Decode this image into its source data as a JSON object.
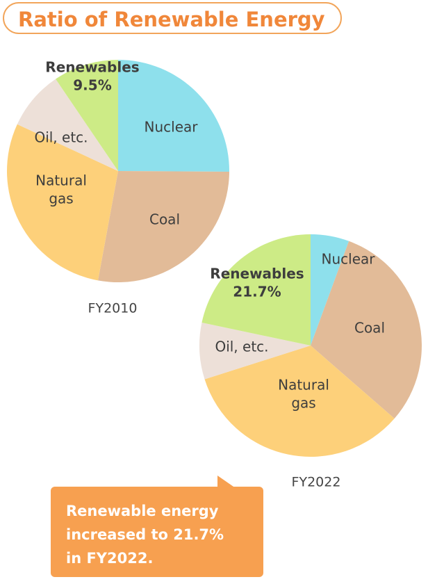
{
  "title": "Ratio of Renewable Energy",
  "chart_data": [
    {
      "type": "pie",
      "label": "FY2010",
      "unit": "%",
      "slices": [
        {
          "name": "Nuclear",
          "value": 25.1,
          "label_lines": [
            "Nuclear"
          ],
          "value_label": "",
          "color": "#8ee0ec"
        },
        {
          "name": "Coal",
          "value": 27.8,
          "label_lines": [
            "Coal"
          ],
          "value_label": "",
          "color": "#e2bb98"
        },
        {
          "name": "Natural gas",
          "value": 29.0,
          "label_lines": [
            "Natural",
            "gas"
          ],
          "value_label": "",
          "color": "#fdd07a"
        },
        {
          "name": "Oil, etc.",
          "value": 8.6,
          "label_lines": [
            "Oil, etc."
          ],
          "value_label": "",
          "color": "#ede0d8"
        },
        {
          "name": "Renewables",
          "value": 9.5,
          "label_lines": [
            "Renewables"
          ],
          "value_label": "9.5%",
          "color": "#cdeb86"
        }
      ]
    },
    {
      "type": "pie",
      "label": "FY2022",
      "unit": "%",
      "slices": [
        {
          "name": "Nuclear",
          "value": 5.6,
          "label_lines": [
            "Nuclear"
          ],
          "value_label": "",
          "color": "#8ee0ec"
        },
        {
          "name": "Coal",
          "value": 30.8,
          "label_lines": [
            "Coal"
          ],
          "value_label": "",
          "color": "#e2bb98"
        },
        {
          "name": "Natural gas",
          "value": 33.7,
          "label_lines": [
            "Natural",
            "gas"
          ],
          "value_label": "",
          "color": "#fdd07a"
        },
        {
          "name": "Oil, etc.",
          "value": 8.2,
          "label_lines": [
            "Oil, etc."
          ],
          "value_label": "",
          "color": "#ede0d8"
        },
        {
          "name": "Renewables",
          "value": 21.7,
          "label_lines": [
            "Renewables"
          ],
          "value_label": "21.7%",
          "color": "#cdeb86"
        }
      ]
    }
  ],
  "callout": {
    "lines": [
      "Renewable energy",
      "increased to 21.7%",
      "in FY2022."
    ],
    "color": "#f7a050"
  },
  "accent_color": "#f0873a"
}
